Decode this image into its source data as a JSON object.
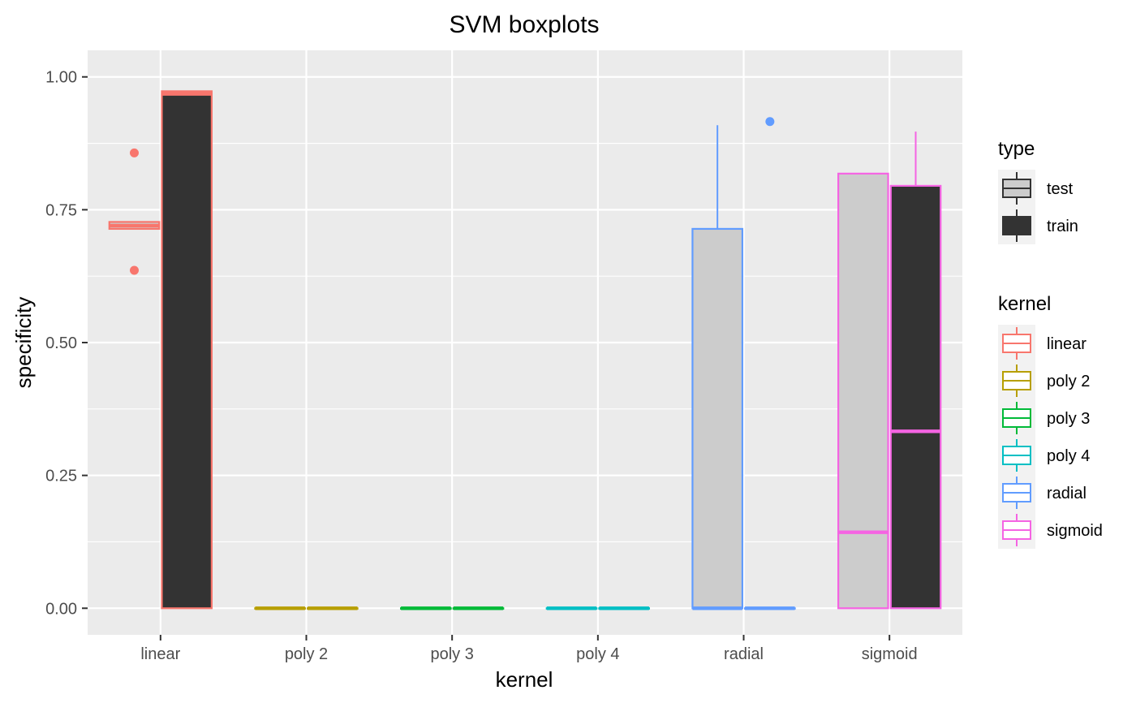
{
  "chart_data": {
    "type": "boxplot",
    "title": "SVM boxplots",
    "xlabel": "kernel",
    "ylabel": "specificity",
    "ylim": [
      -0.05,
      1.05
    ],
    "yticks": [
      0,
      0.25,
      0.5,
      0.75,
      1.0
    ],
    "ytick_labels": [
      "0.00",
      "0.25",
      "0.50",
      "0.75",
      "1.00"
    ],
    "grid": true,
    "legend_position": "right",
    "categories": [
      "linear",
      "poly 2",
      "poly 3",
      "poly 4",
      "radial",
      "sigmoid"
    ],
    "colors": {
      "linear": "#F8766D",
      "poly 2": "#B79F00",
      "poly 3": "#00BA38",
      "poly 4": "#00BFC4",
      "radial": "#619CFF",
      "sigmoid": "#F564E3"
    },
    "type_fills": {
      "test": "#CCCCCC",
      "train": "#333333"
    },
    "legend_type": {
      "title": "type",
      "items": [
        "test",
        "train"
      ]
    },
    "legend_kernel": {
      "title": "kernel",
      "items": [
        "linear",
        "poly 2",
        "poly 3",
        "poly 4",
        "radial",
        "sigmoid"
      ]
    },
    "boxes": [
      {
        "kernel": "linear",
        "type": "test",
        "min": 0.714,
        "q1": 0.714,
        "median": 0.72,
        "q3": 0.727,
        "max": 0.727,
        "outliers": [
          0.857,
          0.636
        ]
      },
      {
        "kernel": "linear",
        "type": "train",
        "min": 0.0,
        "q1": 0.0,
        "median": 0.968,
        "q3": 0.973,
        "max": 0.973,
        "outliers": []
      },
      {
        "kernel": "poly 2",
        "type": "test",
        "min": 0,
        "q1": 0,
        "median": 0,
        "q3": 0,
        "max": 0,
        "outliers": []
      },
      {
        "kernel": "poly 2",
        "type": "train",
        "min": 0,
        "q1": 0,
        "median": 0,
        "q3": 0,
        "max": 0,
        "outliers": []
      },
      {
        "kernel": "poly 3",
        "type": "test",
        "min": 0,
        "q1": 0,
        "median": 0,
        "q3": 0,
        "max": 0,
        "outliers": []
      },
      {
        "kernel": "poly 3",
        "type": "train",
        "min": 0,
        "q1": 0,
        "median": 0,
        "q3": 0,
        "max": 0,
        "outliers": []
      },
      {
        "kernel": "poly 4",
        "type": "test",
        "min": 0,
        "q1": 0,
        "median": 0,
        "q3": 0,
        "max": 0,
        "outliers": []
      },
      {
        "kernel": "poly 4",
        "type": "train",
        "min": 0,
        "q1": 0,
        "median": 0,
        "q3": 0,
        "max": 0,
        "outliers": []
      },
      {
        "kernel": "radial",
        "type": "test",
        "min": 0.0,
        "q1": 0.0,
        "median": 0.0,
        "q3": 0.714,
        "max": 0.909,
        "outliers": []
      },
      {
        "kernel": "radial",
        "type": "train",
        "min": 0,
        "q1": 0,
        "median": 0,
        "q3": 0,
        "max": 0,
        "outliers": [
          0.916
        ]
      },
      {
        "kernel": "sigmoid",
        "type": "test",
        "min": 0.0,
        "q1": 0.0,
        "median": 0.143,
        "q3": 0.818,
        "max": 0.818,
        "outliers": []
      },
      {
        "kernel": "sigmoid",
        "type": "train",
        "min": 0.0,
        "q1": 0.0,
        "median": 0.333,
        "q3": 0.795,
        "max": 0.897,
        "outliers": []
      }
    ]
  }
}
